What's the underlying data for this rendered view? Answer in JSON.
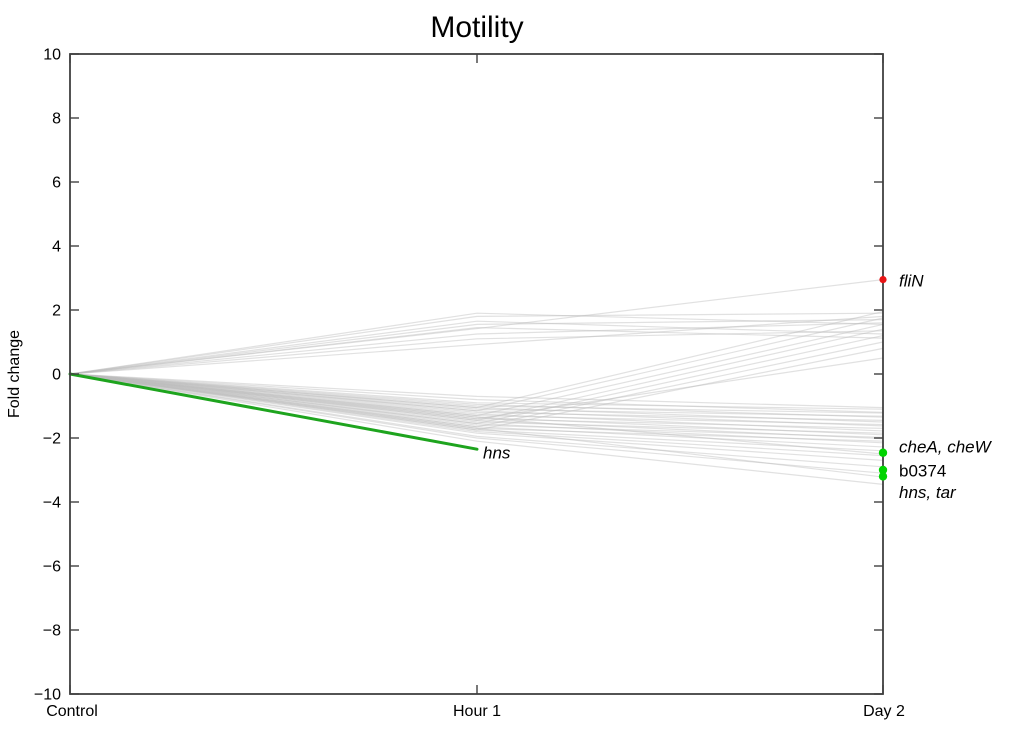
{
  "title": "Motility",
  "axes": {
    "ylabel": "Fold change",
    "x_categories": [
      "Control",
      "Hour 1",
      "Day 2"
    ],
    "y_tick_labels": [
      "10",
      "8",
      "6",
      "4",
      "2",
      "0",
      "−2",
      "−4",
      "−6",
      "−8",
      "−10"
    ],
    "y_tick_values": [
      10,
      8,
      6,
      4,
      2,
      0,
      -2,
      -4,
      -6,
      -8,
      -10
    ]
  },
  "colors": {
    "axis": "#404040",
    "text": "#000000",
    "gray_line": "#bdbdbd",
    "highlight_green": "#1ea41e",
    "marker_green": "#00d400",
    "marker_red": "#e81416",
    "background": "#ffffff"
  },
  "chart_data": {
    "type": "line",
    "title": "Motility",
    "xlabel": "",
    "ylabel": "Fold change",
    "categories": [
      "Control",
      "Hour 1",
      "Day 2"
    ],
    "ylim": [
      -10,
      10
    ],
    "grid": false,
    "legend": "none",
    "background_lines": {
      "description": "unhighlighted gene expression profiles, fold change at Control / Hour 1 / Day 2",
      "series": [
        [
          0,
          1.9,
          1.55
        ],
        [
          0,
          1.8,
          1.9
        ],
        [
          0,
          1.65,
          1.25
        ],
        [
          0,
          1.55,
          1.7
        ],
        [
          0,
          1.45,
          1.12
        ],
        [
          0,
          1.42,
          2.95
        ],
        [
          0,
          1.25,
          1.6
        ],
        [
          0,
          1.1,
          1.35
        ],
        [
          0,
          0.92,
          1.8
        ],
        [
          0,
          -1.05,
          1.95
        ],
        [
          0,
          -1.15,
          1.75
        ],
        [
          0,
          -1.3,
          1.55
        ],
        [
          0,
          -1.45,
          1.4
        ],
        [
          0,
          -1.55,
          1.2
        ],
        [
          0,
          -1.65,
          1.0
        ],
        [
          0,
          -1.75,
          0.8
        ],
        [
          0,
          -1.4,
          0.5
        ],
        [
          0,
          -0.7,
          -1.05
        ],
        [
          0,
          -0.8,
          -1.2
        ],
        [
          0,
          -0.9,
          -1.1
        ],
        [
          0,
          -0.95,
          -1.35
        ],
        [
          0,
          -1.0,
          -1.22
        ],
        [
          0,
          -1.05,
          -1.5
        ],
        [
          0,
          -1.1,
          -1.32
        ],
        [
          0,
          -1.15,
          -1.62
        ],
        [
          0,
          -1.2,
          -1.45
        ],
        [
          0,
          -1.25,
          -1.78
        ],
        [
          0,
          -1.3,
          -1.58
        ],
        [
          0,
          -1.35,
          -1.9
        ],
        [
          0,
          -1.4,
          -1.7
        ],
        [
          0,
          -1.45,
          -2.02
        ],
        [
          0,
          -1.5,
          -1.85
        ],
        [
          0,
          -1.55,
          -2.15
        ],
        [
          0,
          -1.6,
          -1.98
        ],
        [
          0,
          -1.65,
          -2.28
        ],
        [
          0,
          -1.7,
          -2.1
        ],
        [
          0,
          -1.75,
          -2.4
        ],
        [
          0,
          -1.8,
          -2.55
        ],
        [
          0,
          -1.85,
          -2.7
        ],
        [
          0,
          -1.95,
          -2.9
        ],
        [
          0,
          -2.0,
          -3.1
        ],
        [
          0,
          -2.1,
          -3.45
        ],
        [
          0,
          -1.35,
          -2.5
        ],
        [
          0,
          -1.7,
          -3.22
        ]
      ]
    },
    "highlight_lines": [
      {
        "name": "hns",
        "label": "hns",
        "italic": true,
        "values": [
          0,
          -2.35,
          null
        ],
        "label_category": "Hour 1",
        "label_value": -2.45
      }
    ],
    "end_markers": [
      {
        "label": "fliN",
        "italic": true,
        "category": "Day 2",
        "value": 2.95,
        "label_value": 2.92,
        "color_key": "marker_red"
      },
      {
        "label": "cheA, cheW",
        "italic": true,
        "category": "Day 2",
        "value": -2.46,
        "label_value": -2.26,
        "color_key": "marker_green"
      },
      {
        "label": "b0374",
        "italic": false,
        "category": "Day 2",
        "value": -3.0,
        "label_value": -3.02,
        "color_key": "marker_green"
      },
      {
        "label": "hns, tar",
        "italic": true,
        "category": "Day 2",
        "value": -3.2,
        "label_value": -3.68,
        "color_key": "marker_green"
      }
    ]
  }
}
